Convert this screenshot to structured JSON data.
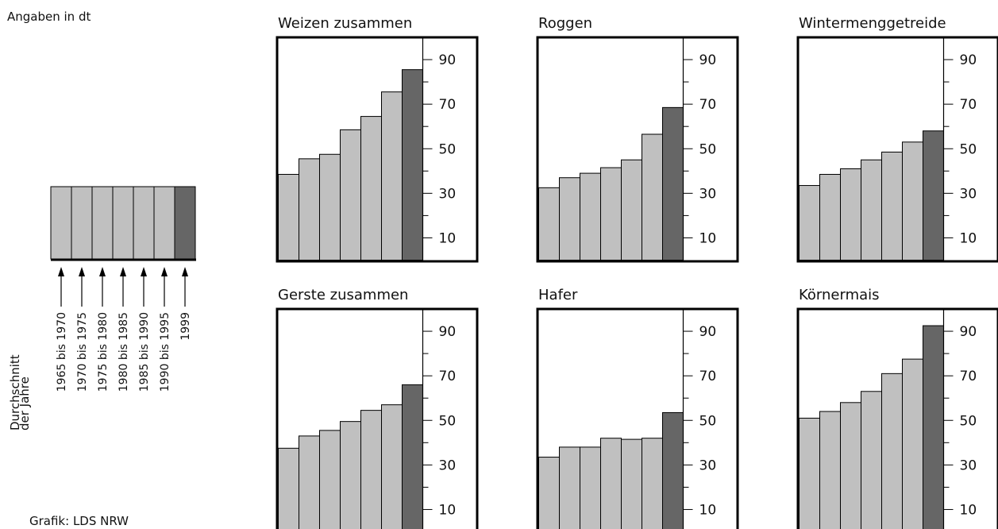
{
  "unit_note": "Angaben in dt",
  "source": "Grafik: LDS NRW",
  "legend": {
    "caption_line1": "Durchschnitt",
    "caption_line2": "der Jahre",
    "periods": [
      "1965 bis 1970",
      "1970 bis 1975",
      "1975 bis 1980",
      "1980 bis 1985",
      "1985 bis 1990",
      "1990 bis 1995",
      "1999"
    ]
  },
  "colors": {
    "bar": "#c0c0c0",
    "bar_highlight": "#666666",
    "stroke": "#000000"
  },
  "chart_data": [
    {
      "type": "bar",
      "title": "Weizen zusammen",
      "ylim": [
        0,
        100
      ],
      "yticks": [
        10,
        30,
        50,
        70,
        90
      ],
      "categories": [
        "1965 bis 1970",
        "1970 bis 1975",
        "1975 bis 1980",
        "1980 bis 1985",
        "1985 bis 1990",
        "1990 bis 1995",
        "1999"
      ],
      "values": [
        38.5,
        45.5,
        47.5,
        58.5,
        64.5,
        75.5,
        85.5
      ]
    },
    {
      "type": "bar",
      "title": "Roggen",
      "ylim": [
        0,
        100
      ],
      "yticks": [
        10,
        30,
        50,
        70,
        90
      ],
      "categories": [
        "1965 bis 1970",
        "1970 bis 1975",
        "1975 bis 1980",
        "1980 bis 1985",
        "1985 bis 1990",
        "1990 bis 1995",
        "1999"
      ],
      "values": [
        32.5,
        37,
        39,
        41.5,
        45,
        56.5,
        68.5
      ]
    },
    {
      "type": "bar",
      "title": "Wintermenggetreide",
      "ylim": [
        0,
        100
      ],
      "yticks": [
        10,
        30,
        50,
        70,
        90
      ],
      "categories": [
        "1965 bis 1970",
        "1970 bis 1975",
        "1975 bis 1980",
        "1980 bis 1985",
        "1985 bis 1990",
        "1990 bis 1995",
        "1999"
      ],
      "values": [
        33.5,
        38.5,
        41,
        45,
        48.5,
        53,
        58
      ]
    },
    {
      "type": "bar",
      "title": "Gerste zusammen",
      "ylim": [
        0,
        100
      ],
      "yticks": [
        10,
        30,
        50,
        70,
        90
      ],
      "categories": [
        "1965 bis 1970",
        "1970 bis 1975",
        "1975 bis 1980",
        "1980 bis 1985",
        "1985 bis 1990",
        "1990 bis 1995",
        "1999"
      ],
      "values": [
        37.5,
        43,
        45.5,
        49.5,
        54.5,
        57,
        66
      ]
    },
    {
      "type": "bar",
      "title": "Hafer",
      "ylim": [
        0,
        100
      ],
      "yticks": [
        10,
        30,
        50,
        70,
        90
      ],
      "categories": [
        "1965 bis 1970",
        "1970 bis 1975",
        "1975 bis 1980",
        "1980 bis 1985",
        "1985 bis 1990",
        "1990 bis 1995",
        "1999"
      ],
      "values": [
        33.5,
        38,
        38,
        42,
        41.5,
        42,
        53.5
      ]
    },
    {
      "type": "bar",
      "title": "Körnermais",
      "ylim": [
        0,
        100
      ],
      "yticks": [
        10,
        30,
        50,
        70,
        90
      ],
      "categories": [
        "1965 bis 1970",
        "1970 bis 1975",
        "1975 bis 1980",
        "1980 bis 1985",
        "1985 bis 1990",
        "1990 bis 1995",
        "1999"
      ],
      "values": [
        51,
        54,
        58,
        63,
        71,
        77.5,
        92.5
      ]
    }
  ]
}
